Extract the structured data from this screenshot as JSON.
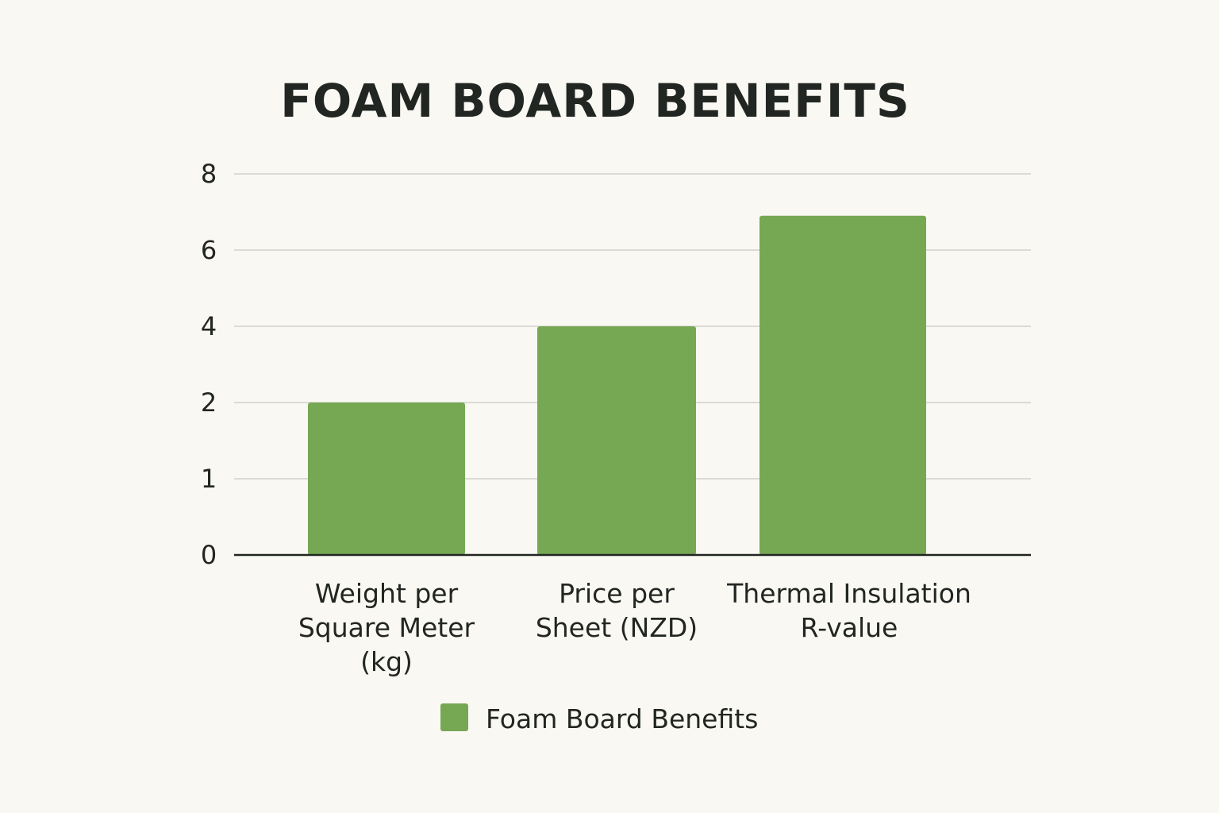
{
  "chart_data": {
    "type": "bar",
    "title": "FOAM BOARD BENEFITS",
    "categories": [
      [
        "Weight per",
        "Square Meter",
        "(kg)"
      ],
      [
        "Price per",
        "Sheet (NZD)"
      ],
      [
        "Thermal Insulation",
        "R-value"
      ]
    ],
    "series": [
      {
        "name": "Foam Board Benefits",
        "values": [
          2,
          4,
          6.9
        ],
        "color": "#76a853"
      }
    ],
    "y_ticks": [
      {
        "value": 0,
        "label": "0"
      },
      {
        "value": 1,
        "label": "1"
      },
      {
        "value": 2,
        "label": "2"
      },
      {
        "value": 4,
        "label": "4"
      },
      {
        "value": 6,
        "label": "6"
      },
      {
        "value": 8,
        "label": "8"
      }
    ],
    "ylim": [
      0,
      8
    ],
    "grid": true,
    "legend_position": "bottom-center"
  }
}
